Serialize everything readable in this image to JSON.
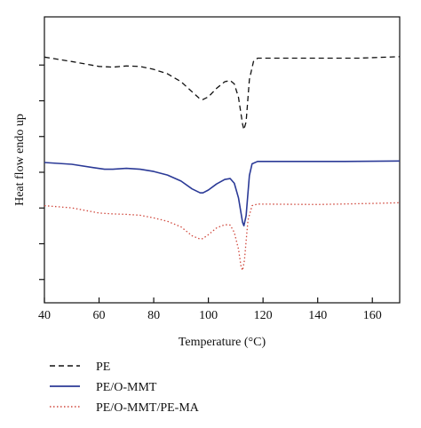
{
  "chart_data": {
    "type": "line",
    "title": "",
    "xlabel": "Temperature (°C)",
    "ylabel": "Heat flow endo up",
    "xlim": [
      40,
      170
    ],
    "xticks": [
      40,
      60,
      80,
      100,
      120,
      140,
      160
    ],
    "y_tick_count": 7,
    "y_tick_labels_shown": false,
    "grid": false,
    "legend_position": "bottom-left",
    "series": [
      {
        "name": "PE",
        "color": "#111111",
        "style": "dashed",
        "points": [
          [
            40,
            8.5
          ],
          [
            50,
            8.3
          ],
          [
            60,
            8.08
          ],
          [
            65,
            8.05
          ],
          [
            70,
            8.1
          ],
          [
            75,
            8.08
          ],
          [
            80,
            7.95
          ],
          [
            85,
            7.75
          ],
          [
            90,
            7.4
          ],
          [
            94,
            6.95
          ],
          [
            97,
            6.62
          ],
          [
            98,
            6.6
          ],
          [
            100,
            6.72
          ],
          [
            103,
            7.1
          ],
          [
            106,
            7.4
          ],
          [
            108,
            7.45
          ],
          [
            109.5,
            7.3
          ],
          [
            111,
            6.7
          ],
          [
            112.5,
            5.5
          ],
          [
            113,
            5.25
          ],
          [
            113.8,
            5.6
          ],
          [
            115,
            7.5
          ],
          [
            116.5,
            8.3
          ],
          [
            118,
            8.45
          ],
          [
            125,
            8.45
          ],
          [
            140,
            8.45
          ],
          [
            155,
            8.45
          ],
          [
            170,
            8.52
          ]
        ]
      },
      {
        "name": "PE/O-MMT",
        "color": "#2b3a97",
        "style": "solid",
        "points": [
          [
            40,
            3.78
          ],
          [
            50,
            3.7
          ],
          [
            58,
            3.55
          ],
          [
            62,
            3.48
          ],
          [
            65,
            3.48
          ],
          [
            70,
            3.52
          ],
          [
            75,
            3.48
          ],
          [
            80,
            3.38
          ],
          [
            85,
            3.22
          ],
          [
            90,
            2.95
          ],
          [
            94,
            2.6
          ],
          [
            97,
            2.42
          ],
          [
            98,
            2.42
          ],
          [
            100,
            2.55
          ],
          [
            103,
            2.82
          ],
          [
            106,
            3.02
          ],
          [
            108,
            3.06
          ],
          [
            109.5,
            2.85
          ],
          [
            111,
            2.2
          ],
          [
            112.5,
            1.1
          ],
          [
            113,
            0.95
          ],
          [
            113.8,
            1.4
          ],
          [
            115,
            3.2
          ],
          [
            116,
            3.72
          ],
          [
            118,
            3.83
          ],
          [
            130,
            3.83
          ],
          [
            150,
            3.83
          ],
          [
            170,
            3.85
          ]
        ]
      },
      {
        "name": "PE/O-MMT/PE-MA",
        "color": "#d0483d",
        "style": "dotted",
        "points": [
          [
            40,
            1.85
          ],
          [
            50,
            1.75
          ],
          [
            60,
            1.52
          ],
          [
            65,
            1.48
          ],
          [
            70,
            1.46
          ],
          [
            75,
            1.42
          ],
          [
            80,
            1.3
          ],
          [
            85,
            1.15
          ],
          [
            90,
            0.9
          ],
          [
            94,
            0.5
          ],
          [
            97,
            0.35
          ],
          [
            98,
            0.38
          ],
          [
            100,
            0.55
          ],
          [
            103,
            0.85
          ],
          [
            106,
            1.0
          ],
          [
            108,
            0.98
          ],
          [
            109.5,
            0.65
          ],
          [
            111,
            -0.1
          ],
          [
            112,
            -0.9
          ],
          [
            112.5,
            -1.05
          ],
          [
            113.2,
            -0.6
          ],
          [
            114.5,
            1.2
          ],
          [
            116,
            1.85
          ],
          [
            118,
            1.92
          ],
          [
            140,
            1.9
          ],
          [
            160,
            1.95
          ],
          [
            170,
            1.98
          ]
        ]
      }
    ]
  }
}
